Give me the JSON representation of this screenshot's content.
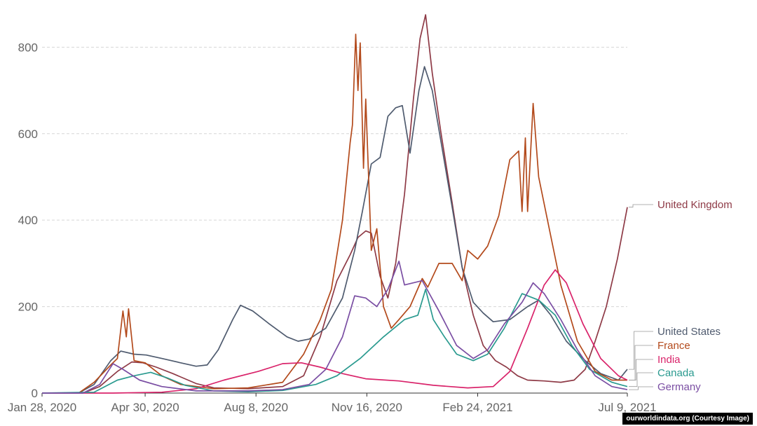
{
  "chart_data": {
    "type": "line",
    "x_type": "date",
    "xlim": [
      "2020-01-28",
      "2021-07-09"
    ],
    "ylim": [
      0,
      880
    ],
    "yticks": [
      0,
      200,
      400,
      600,
      800
    ],
    "xticks": [
      {
        "date": "2020-01-28",
        "label": "Jan 28, 2020"
      },
      {
        "date": "2020-04-30",
        "label": "Apr 30, 2020"
      },
      {
        "date": "2020-08-08",
        "label": "Aug 8, 2020"
      },
      {
        "date": "2020-11-16",
        "label": "Nov 16, 2020"
      },
      {
        "date": "2021-02-24",
        "label": "Feb 24, 2021"
      },
      {
        "date": "2021-07-09",
        "label": "Jul 9, 2021"
      }
    ],
    "grid": true,
    "legend_position": "right, at line ends",
    "series": [
      {
        "name": "United Kingdom",
        "color": "#8e3a46",
        "points": [
          [
            "2020-01-28",
            0
          ],
          [
            "2020-03-05",
            0
          ],
          [
            "2020-03-20",
            15
          ],
          [
            "2020-04-05",
            50
          ],
          [
            "2020-04-18",
            72
          ],
          [
            "2020-04-28",
            70
          ],
          [
            "2020-05-10",
            60
          ],
          [
            "2020-05-25",
            45
          ],
          [
            "2020-06-15",
            22
          ],
          [
            "2020-07-01",
            12
          ],
          [
            "2020-08-01",
            10
          ],
          [
            "2020-09-01",
            15
          ],
          [
            "2020-09-20",
            40
          ],
          [
            "2020-10-05",
            130
          ],
          [
            "2020-10-20",
            260
          ],
          [
            "2020-11-01",
            320
          ],
          [
            "2020-11-08",
            360
          ],
          [
            "2020-11-15",
            375
          ],
          [
            "2020-11-20",
            370
          ],
          [
            "2020-11-28",
            270
          ],
          [
            "2020-12-05",
            220
          ],
          [
            "2020-12-12",
            300
          ],
          [
            "2020-12-20",
            460
          ],
          [
            "2020-12-28",
            680
          ],
          [
            "2021-01-03",
            820
          ],
          [
            "2021-01-08",
            875
          ],
          [
            "2021-01-14",
            740
          ],
          [
            "2021-01-22",
            600
          ],
          [
            "2021-02-01",
            440
          ],
          [
            "2021-02-10",
            290
          ],
          [
            "2021-02-20",
            180
          ],
          [
            "2021-03-01",
            110
          ],
          [
            "2021-03-12",
            75
          ],
          [
            "2021-03-22",
            60
          ],
          [
            "2021-04-01",
            40
          ],
          [
            "2021-04-10",
            30
          ],
          [
            "2021-04-25",
            28
          ],
          [
            "2021-05-10",
            25
          ],
          [
            "2021-05-22",
            30
          ],
          [
            "2021-06-01",
            55
          ],
          [
            "2021-06-10",
            120
          ],
          [
            "2021-06-20",
            200
          ],
          [
            "2021-06-30",
            310
          ],
          [
            "2021-07-09",
            430
          ]
        ]
      },
      {
        "name": "United States",
        "color": "#4f5b6f",
        "points": [
          [
            "2020-01-28",
            0
          ],
          [
            "2020-03-01",
            0
          ],
          [
            "2020-03-15",
            20
          ],
          [
            "2020-03-30",
            75
          ],
          [
            "2020-04-08",
            97
          ],
          [
            "2020-04-20",
            90
          ],
          [
            "2020-05-01",
            88
          ],
          [
            "2020-05-15",
            80
          ],
          [
            "2020-06-01",
            70
          ],
          [
            "2020-06-15",
            62
          ],
          [
            "2020-06-25",
            65
          ],
          [
            "2020-07-05",
            100
          ],
          [
            "2020-07-18",
            170
          ],
          [
            "2020-07-25",
            203
          ],
          [
            "2020-08-05",
            190
          ],
          [
            "2020-08-20",
            160
          ],
          [
            "2020-09-05",
            130
          ],
          [
            "2020-09-15",
            120
          ],
          [
            "2020-09-25",
            125
          ],
          [
            "2020-10-10",
            150
          ],
          [
            "2020-10-25",
            220
          ],
          [
            "2020-11-05",
            330
          ],
          [
            "2020-11-12",
            420
          ],
          [
            "2020-11-20",
            530
          ],
          [
            "2020-11-28",
            545
          ],
          [
            "2020-12-05",
            640
          ],
          [
            "2020-12-12",
            660
          ],
          [
            "2020-12-18",
            665
          ],
          [
            "2020-12-25",
            555
          ],
          [
            "2021-01-02",
            700
          ],
          [
            "2021-01-07",
            755
          ],
          [
            "2021-01-14",
            700
          ],
          [
            "2021-01-22",
            580
          ],
          [
            "2021-02-01",
            430
          ],
          [
            "2021-02-10",
            290
          ],
          [
            "2021-02-20",
            210
          ],
          [
            "2021-03-01",
            185
          ],
          [
            "2021-03-10",
            165
          ],
          [
            "2021-03-25",
            170
          ],
          [
            "2021-04-10",
            200
          ],
          [
            "2021-04-20",
            215
          ],
          [
            "2021-05-01",
            180
          ],
          [
            "2021-05-15",
            120
          ],
          [
            "2021-06-01",
            75
          ],
          [
            "2021-06-15",
            45
          ],
          [
            "2021-07-01",
            30
          ],
          [
            "2021-07-09",
            55
          ]
        ]
      },
      {
        "name": "France",
        "color": "#b34a1c",
        "points": [
          [
            "2020-01-28",
            0
          ],
          [
            "2020-03-01",
            0
          ],
          [
            "2020-03-15",
            25
          ],
          [
            "2020-03-30",
            65
          ],
          [
            "2020-04-05",
            80
          ],
          [
            "2020-04-10",
            190
          ],
          [
            "2020-04-13",
            130
          ],
          [
            "2020-04-15",
            195
          ],
          [
            "2020-04-20",
            75
          ],
          [
            "2020-04-30",
            70
          ],
          [
            "2020-05-15",
            40
          ],
          [
            "2020-06-01",
            20
          ],
          [
            "2020-07-01",
            10
          ],
          [
            "2020-08-01",
            12
          ],
          [
            "2020-09-01",
            25
          ],
          [
            "2020-09-20",
            90
          ],
          [
            "2020-10-05",
            170
          ],
          [
            "2020-10-15",
            240
          ],
          [
            "2020-10-25",
            400
          ],
          [
            "2020-11-01",
            580
          ],
          [
            "2020-11-03",
            620
          ],
          [
            "2020-11-06",
            830
          ],
          [
            "2020-11-08",
            700
          ],
          [
            "2020-11-10",
            810
          ],
          [
            "2020-11-13",
            520
          ],
          [
            "2020-11-15",
            680
          ],
          [
            "2020-11-20",
            330
          ],
          [
            "2020-11-25",
            380
          ],
          [
            "2020-12-01",
            200
          ],
          [
            "2020-12-08",
            150
          ],
          [
            "2020-12-15",
            170
          ],
          [
            "2020-12-25",
            200
          ],
          [
            "2021-01-05",
            265
          ],
          [
            "2021-01-10",
            245
          ],
          [
            "2021-01-20",
            300
          ],
          [
            "2021-02-01",
            300
          ],
          [
            "2021-02-10",
            260
          ],
          [
            "2021-02-15",
            330
          ],
          [
            "2021-02-24",
            310
          ],
          [
            "2021-03-05",
            340
          ],
          [
            "2021-03-15",
            410
          ],
          [
            "2021-03-25",
            540
          ],
          [
            "2021-04-02",
            560
          ],
          [
            "2021-04-05",
            420
          ],
          [
            "2021-04-08",
            590
          ],
          [
            "2021-04-10",
            420
          ],
          [
            "2021-04-15",
            670
          ],
          [
            "2021-04-20",
            500
          ],
          [
            "2021-04-28",
            400
          ],
          [
            "2021-05-10",
            250
          ],
          [
            "2021-05-25",
            120
          ],
          [
            "2021-06-10",
            50
          ],
          [
            "2021-06-25",
            30
          ],
          [
            "2021-07-09",
            30
          ]
        ]
      },
      {
        "name": "India",
        "color": "#d9236a",
        "points": [
          [
            "2020-01-28",
            0
          ],
          [
            "2020-04-01",
            0
          ],
          [
            "2020-05-15",
            2
          ],
          [
            "2020-06-15",
            10
          ],
          [
            "2020-07-10",
            30
          ],
          [
            "2020-08-10",
            50
          ],
          [
            "2020-09-01",
            68
          ],
          [
            "2020-09-18",
            70
          ],
          [
            "2020-10-05",
            60
          ],
          [
            "2020-10-25",
            45
          ],
          [
            "2020-11-15",
            33
          ],
          [
            "2020-12-15",
            28
          ],
          [
            "2021-01-15",
            18
          ],
          [
            "2021-02-15",
            12
          ],
          [
            "2021-03-10",
            15
          ],
          [
            "2021-03-25",
            50
          ],
          [
            "2021-04-10",
            150
          ],
          [
            "2021-04-25",
            250
          ],
          [
            "2021-05-05",
            285
          ],
          [
            "2021-05-15",
            255
          ],
          [
            "2021-05-30",
            160
          ],
          [
            "2021-06-15",
            80
          ],
          [
            "2021-07-01",
            40
          ],
          [
            "2021-07-09",
            30
          ]
        ]
      },
      {
        "name": "Canada",
        "color": "#2a9a8f",
        "points": [
          [
            "2020-01-28",
            0
          ],
          [
            "2020-03-15",
            2
          ],
          [
            "2020-04-05",
            30
          ],
          [
            "2020-04-20",
            40
          ],
          [
            "2020-05-05",
            48
          ],
          [
            "2020-05-20",
            35
          ],
          [
            "2020-06-05",
            18
          ],
          [
            "2020-07-01",
            5
          ],
          [
            "2020-08-01",
            3
          ],
          [
            "2020-09-01",
            6
          ],
          [
            "2020-10-01",
            20
          ],
          [
            "2020-10-20",
            40
          ],
          [
            "2020-11-10",
            80
          ],
          [
            "2020-12-01",
            130
          ],
          [
            "2020-12-20",
            170
          ],
          [
            "2021-01-01",
            180
          ],
          [
            "2021-01-08",
            240
          ],
          [
            "2021-01-15",
            170
          ],
          [
            "2021-01-25",
            130
          ],
          [
            "2021-02-05",
            90
          ],
          [
            "2021-02-20",
            75
          ],
          [
            "2021-03-05",
            90
          ],
          [
            "2021-03-20",
            150
          ],
          [
            "2021-04-05",
            230
          ],
          [
            "2021-04-20",
            215
          ],
          [
            "2021-05-05",
            180
          ],
          [
            "2021-05-20",
            110
          ],
          [
            "2021-06-05",
            55
          ],
          [
            "2021-06-25",
            25
          ],
          [
            "2021-07-09",
            15
          ]
        ]
      },
      {
        "name": "Germany",
        "color": "#7a4ea3",
        "points": [
          [
            "2020-01-28",
            0
          ],
          [
            "2020-03-05",
            0
          ],
          [
            "2020-03-20",
            20
          ],
          [
            "2020-04-01",
            68
          ],
          [
            "2020-04-10",
            55
          ],
          [
            "2020-04-25",
            30
          ],
          [
            "2020-05-15",
            15
          ],
          [
            "2020-06-15",
            5
          ],
          [
            "2020-08-01",
            5
          ],
          [
            "2020-09-01",
            8
          ],
          [
            "2020-09-25",
            20
          ],
          [
            "2020-10-10",
            55
          ],
          [
            "2020-10-25",
            130
          ],
          [
            "2020-11-05",
            225
          ],
          [
            "2020-11-15",
            220
          ],
          [
            "2020-11-25",
            200
          ],
          [
            "2020-12-05",
            240
          ],
          [
            "2020-12-15",
            305
          ],
          [
            "2020-12-20",
            250
          ],
          [
            "2021-01-05",
            260
          ],
          [
            "2021-01-20",
            190
          ],
          [
            "2021-02-05",
            110
          ],
          [
            "2021-02-20",
            80
          ],
          [
            "2021-03-05",
            100
          ],
          [
            "2021-03-20",
            160
          ],
          [
            "2021-04-05",
            210
          ],
          [
            "2021-04-15",
            255
          ],
          [
            "2021-04-25",
            230
          ],
          [
            "2021-05-10",
            170
          ],
          [
            "2021-05-25",
            100
          ],
          [
            "2021-06-10",
            40
          ],
          [
            "2021-06-25",
            15
          ],
          [
            "2021-07-09",
            8
          ]
        ]
      }
    ]
  },
  "credit": "ourworldindata.org (Courtesy Image)"
}
